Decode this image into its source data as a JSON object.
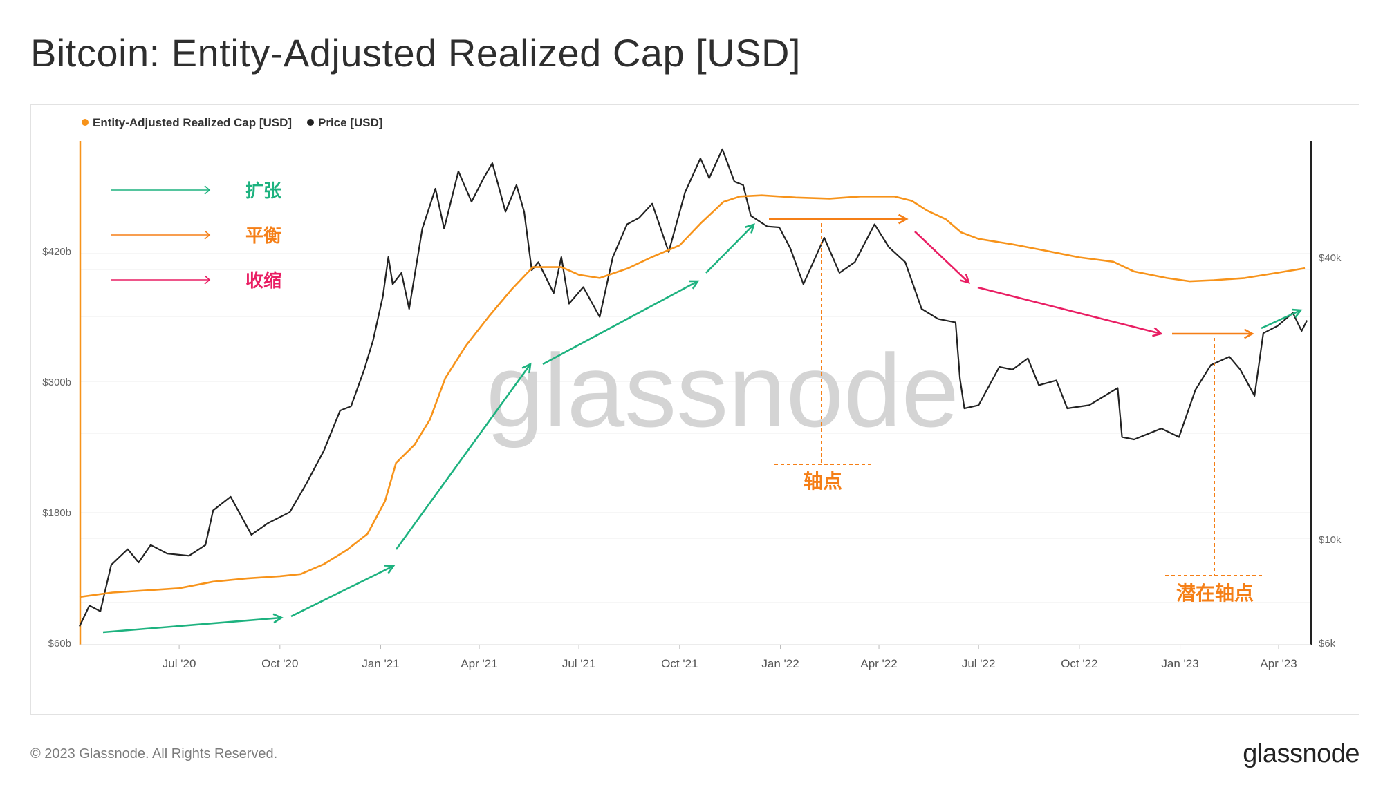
{
  "title": "Bitcoin: Entity-Adjusted Realized Cap [USD]",
  "footer": {
    "copyright": "© 2023 Glassnode. All Rights Reserved.",
    "logo": "glassnode"
  },
  "watermark": "glassnode",
  "colors": {
    "realized_cap": "#f7931a",
    "price": "#222222",
    "expansion": "#1db27f",
    "balance": "#f57f17",
    "contraction": "#e91e63"
  },
  "annotation_legend": [
    {
      "label": "扩张",
      "color": "#1db27f"
    },
    {
      "label": "平衡",
      "color": "#f57f17"
    },
    {
      "label": "收缩",
      "color": "#e91e63"
    }
  ],
  "annotations": {
    "pivot": "轴点",
    "potential_pivot": "潜在轴点"
  },
  "chart_data": {
    "type": "line",
    "legend": [
      "Entity-Adjusted Realized Cap [USD]",
      "Price [USD]"
    ],
    "legend_position": "top-left",
    "x_ticks": [
      "Jul '20",
      "Oct '20",
      "Jan '21",
      "Apr '21",
      "Jul '21",
      "Oct '21",
      "Jan '22",
      "Apr '22",
      "Jul '22",
      "Oct '22",
      "Jan '23",
      "Apr '23"
    ],
    "y_left": {
      "ticks": [
        "$60b",
        "$180b",
        "$300b",
        "$420b"
      ],
      "values": [
        60,
        180,
        300,
        420
      ],
      "unit": "billion USD"
    },
    "y_right": {
      "scale": "log",
      "ticks": [
        "$6k",
        "$10k",
        "$40k"
      ],
      "values": [
        6000,
        10000,
        40000
      ]
    },
    "grid": true,
    "x_range": [
      "2020-04-01",
      "2023-04-30"
    ],
    "series": [
      {
        "name": "Entity-Adjusted Realized Cap [USD]",
        "axis": "left",
        "points": [
          [
            "2020-04-01",
            102
          ],
          [
            "2020-05-01",
            106
          ],
          [
            "2020-06-01",
            108
          ],
          [
            "2020-07-01",
            110
          ],
          [
            "2020-08-01",
            116
          ],
          [
            "2020-09-01",
            119
          ],
          [
            "2020-10-01",
            121
          ],
          [
            "2020-10-20",
            123
          ],
          [
            "2020-11-10",
            132
          ],
          [
            "2020-12-01",
            145
          ],
          [
            "2020-12-20",
            160
          ],
          [
            "2021-01-05",
            190
          ],
          [
            "2021-01-15",
            225
          ],
          [
            "2021-02-01",
            242
          ],
          [
            "2021-02-15",
            265
          ],
          [
            "2021-03-01",
            303
          ],
          [
            "2021-03-20",
            333
          ],
          [
            "2021-04-10",
            360
          ],
          [
            "2021-05-01",
            385
          ],
          [
            "2021-05-20",
            405
          ],
          [
            "2021-06-15",
            405
          ],
          [
            "2021-07-01",
            398
          ],
          [
            "2021-07-20",
            395
          ],
          [
            "2021-08-15",
            404
          ],
          [
            "2021-09-05",
            414
          ],
          [
            "2021-10-01",
            425
          ],
          [
            "2021-10-20",
            445
          ],
          [
            "2021-11-10",
            465
          ],
          [
            "2021-11-25",
            470
          ],
          [
            "2021-12-15",
            471
          ],
          [
            "2022-01-15",
            469
          ],
          [
            "2022-02-15",
            468
          ],
          [
            "2022-03-15",
            470
          ],
          [
            "2022-04-15",
            470
          ],
          [
            "2022-05-01",
            466
          ],
          [
            "2022-05-15",
            457
          ],
          [
            "2022-06-01",
            449
          ],
          [
            "2022-06-15",
            437
          ],
          [
            "2022-07-01",
            431
          ],
          [
            "2022-08-01",
            426
          ],
          [
            "2022-09-01",
            420
          ],
          [
            "2022-10-01",
            414
          ],
          [
            "2022-11-01",
            410
          ],
          [
            "2022-11-20",
            401
          ],
          [
            "2022-12-20",
            395
          ],
          [
            "2023-01-10",
            392
          ],
          [
            "2023-02-01",
            393
          ],
          [
            "2023-03-01",
            395
          ],
          [
            "2023-04-01",
            400
          ],
          [
            "2023-04-25",
            404
          ]
        ]
      },
      {
        "name": "Price [USD]",
        "axis": "right",
        "points": [
          [
            "2020-04-01",
            6500
          ],
          [
            "2020-04-10",
            7200
          ],
          [
            "2020-04-20",
            7000
          ],
          [
            "2020-04-30",
            8800
          ],
          [
            "2020-05-15",
            9500
          ],
          [
            "2020-05-25",
            8900
          ],
          [
            "2020-06-05",
            9700
          ],
          [
            "2020-06-20",
            9300
          ],
          [
            "2020-07-10",
            9200
          ],
          [
            "2020-07-25",
            9700
          ],
          [
            "2020-08-01",
            11500
          ],
          [
            "2020-08-17",
            12300
          ],
          [
            "2020-09-05",
            10200
          ],
          [
            "2020-09-20",
            10800
          ],
          [
            "2020-10-10",
            11400
          ],
          [
            "2020-10-25",
            13100
          ],
          [
            "2020-11-10",
            15400
          ],
          [
            "2020-11-25",
            18800
          ],
          [
            "2020-12-05",
            19200
          ],
          [
            "2020-12-17",
            23000
          ],
          [
            "2020-12-25",
            26500
          ],
          [
            "2021-01-03",
            33000
          ],
          [
            "2021-01-08",
            40000
          ],
          [
            "2021-01-12",
            35000
          ],
          [
            "2021-01-20",
            37000
          ],
          [
            "2021-01-27",
            31000
          ],
          [
            "2021-02-08",
            46000
          ],
          [
            "2021-02-20",
            56000
          ],
          [
            "2021-02-28",
            46000
          ],
          [
            "2021-03-13",
            61000
          ],
          [
            "2021-03-25",
            52500
          ],
          [
            "2021-04-05",
            59000
          ],
          [
            "2021-04-13",
            63500
          ],
          [
            "2021-04-25",
            50000
          ],
          [
            "2021-05-05",
            57000
          ],
          [
            "2021-05-12",
            50000
          ],
          [
            "2021-05-19",
            37500
          ],
          [
            "2021-05-25",
            39000
          ],
          [
            "2021-06-08",
            33500
          ],
          [
            "2021-06-15",
            40000
          ],
          [
            "2021-06-22",
            31800
          ],
          [
            "2021-07-05",
            34500
          ],
          [
            "2021-07-20",
            29800
          ],
          [
            "2021-08-01",
            40000
          ],
          [
            "2021-08-14",
            47000
          ],
          [
            "2021-08-25",
            48500
          ],
          [
            "2021-09-06",
            52000
          ],
          [
            "2021-09-21",
            41000
          ],
          [
            "2021-10-06",
            55000
          ],
          [
            "2021-10-20",
            65000
          ],
          [
            "2021-10-28",
            59000
          ],
          [
            "2021-11-09",
            68000
          ],
          [
            "2021-11-20",
            58000
          ],
          [
            "2021-11-28",
            57000
          ],
          [
            "2021-12-05",
            49000
          ],
          [
            "2021-12-20",
            46500
          ],
          [
            "2021-12-31",
            46300
          ],
          [
            "2022-01-10",
            41800
          ],
          [
            "2022-01-22",
            35000
          ],
          [
            "2022-02-10",
            44000
          ],
          [
            "2022-02-24",
            37000
          ],
          [
            "2022-03-10",
            39000
          ],
          [
            "2022-03-28",
            47000
          ],
          [
            "2022-04-10",
            42000
          ],
          [
            "2022-04-25",
            39000
          ],
          [
            "2022-05-10",
            31000
          ],
          [
            "2022-05-25",
            29500
          ],
          [
            "2022-06-10",
            29000
          ],
          [
            "2022-06-14",
            22000
          ],
          [
            "2022-06-18",
            19000
          ],
          [
            "2022-07-01",
            19300
          ],
          [
            "2022-07-20",
            23300
          ],
          [
            "2022-08-01",
            23000
          ],
          [
            "2022-08-15",
            24300
          ],
          [
            "2022-08-25",
            21300
          ],
          [
            "2022-09-10",
            21800
          ],
          [
            "2022-09-20",
            19000
          ],
          [
            "2022-10-10",
            19300
          ],
          [
            "2022-11-05",
            21000
          ],
          [
            "2022-11-09",
            16500
          ],
          [
            "2022-11-20",
            16300
          ],
          [
            "2022-12-15",
            17200
          ],
          [
            "2022-12-31",
            16500
          ],
          [
            "2023-01-15",
            20800
          ],
          [
            "2023-01-29",
            23500
          ],
          [
            "2023-02-15",
            24500
          ],
          [
            "2023-02-25",
            23000
          ],
          [
            "2023-03-10",
            20200
          ],
          [
            "2023-03-18",
            27500
          ],
          [
            "2023-03-31",
            28500
          ],
          [
            "2023-04-14",
            30400
          ],
          [
            "2023-04-22",
            27800
          ],
          [
            "2023-04-27",
            29300
          ]
        ]
      }
    ]
  }
}
